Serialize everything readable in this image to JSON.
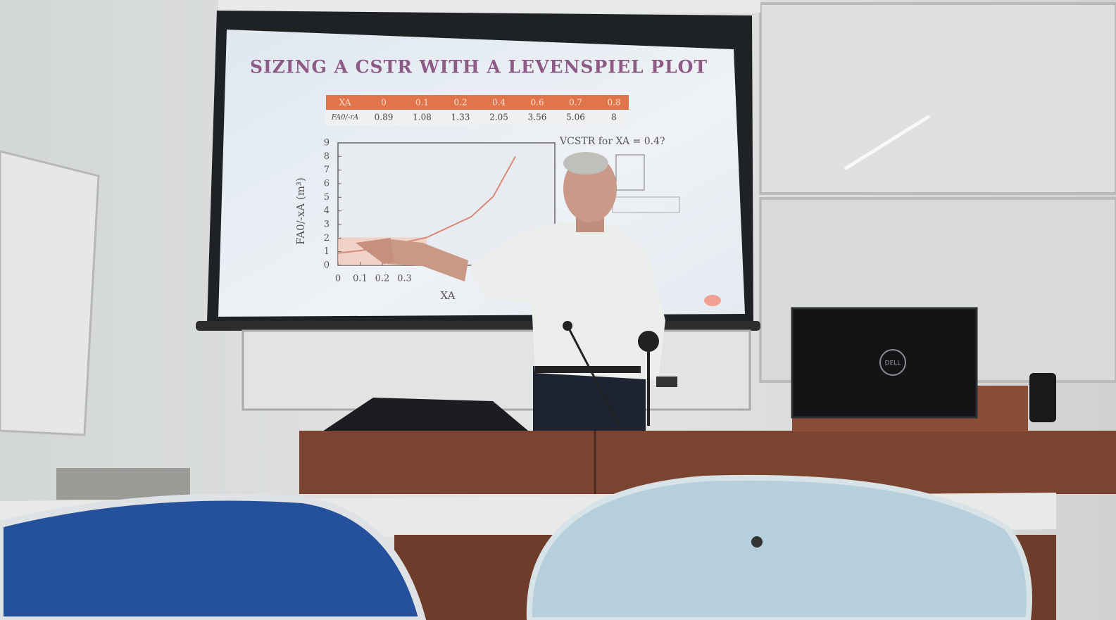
{
  "slide": {
    "title": "SIZING A CSTR WITH A LEVENSPIEL PLOT",
    "table": {
      "row_labels": [
        "XA",
        "FA0/-rA"
      ],
      "x": [
        0,
        0.1,
        0.2,
        0.4,
        0.6,
        0.7,
        0.8
      ],
      "y": [
        0.89,
        1.08,
        1.33,
        2.05,
        3.56,
        5.06,
        8
      ]
    },
    "plot": {
      "ylabel": "FA0/-xA (m³)",
      "xlabel": "XA",
      "xlim": [
        0,
        1
      ],
      "ylim": [
        0,
        9
      ],
      "yticks": [
        0,
        1,
        2,
        3,
        4,
        5,
        6,
        7,
        8,
        9
      ],
      "xticks": [
        0,
        0.1,
        0.2,
        0.3
      ]
    },
    "question": "VCSTR for XA = 0.4?"
  },
  "laptop": {
    "brand": "DELL"
  }
}
